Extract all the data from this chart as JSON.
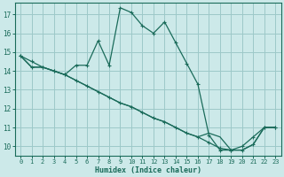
{
  "xlabel": "Humidex (Indice chaleur)",
  "background_color": "#cce9e9",
  "line_color": "#1a6b5a",
  "grid_color": "#9dc8c8",
  "x_values": [
    0,
    1,
    2,
    3,
    4,
    5,
    6,
    7,
    8,
    9,
    10,
    11,
    12,
    13,
    14,
    15,
    16,
    17,
    18,
    19,
    20,
    21,
    22,
    23
  ],
  "series1": [
    14.8,
    14.5,
    14.2,
    14.0,
    13.8,
    14.3,
    14.3,
    15.6,
    14.3,
    17.35,
    17.1,
    16.4,
    16.0,
    16.6,
    15.5,
    14.4,
    13.3,
    10.6,
    9.8,
    9.8,
    10.0,
    10.5,
    11.0,
    11.0
  ],
  "series2": [
    14.8,
    14.2,
    14.2,
    14.0,
    13.8,
    13.5,
    13.2,
    12.9,
    12.6,
    12.3,
    12.1,
    11.8,
    11.5,
    11.3,
    11.0,
    10.7,
    10.5,
    10.2,
    9.9,
    9.8,
    9.8,
    10.1,
    11.0,
    11.0
  ],
  "series3": [
    14.8,
    14.2,
    14.2,
    14.0,
    13.8,
    13.5,
    13.2,
    12.9,
    12.6,
    12.3,
    12.1,
    11.8,
    11.5,
    11.3,
    11.0,
    10.7,
    10.5,
    10.7,
    10.5,
    9.8,
    9.8,
    10.1,
    11.0,
    11.0
  ],
  "ylim_min": 9.5,
  "ylim_max": 17.6,
  "xlim_min": -0.5,
  "xlim_max": 23.5,
  "yticks": [
    10,
    11,
    12,
    13,
    14,
    15,
    16,
    17
  ],
  "xticks": [
    0,
    1,
    2,
    3,
    4,
    5,
    6,
    7,
    8,
    9,
    10,
    11,
    12,
    13,
    14,
    15,
    16,
    17,
    18,
    19,
    20,
    21,
    22,
    23
  ]
}
